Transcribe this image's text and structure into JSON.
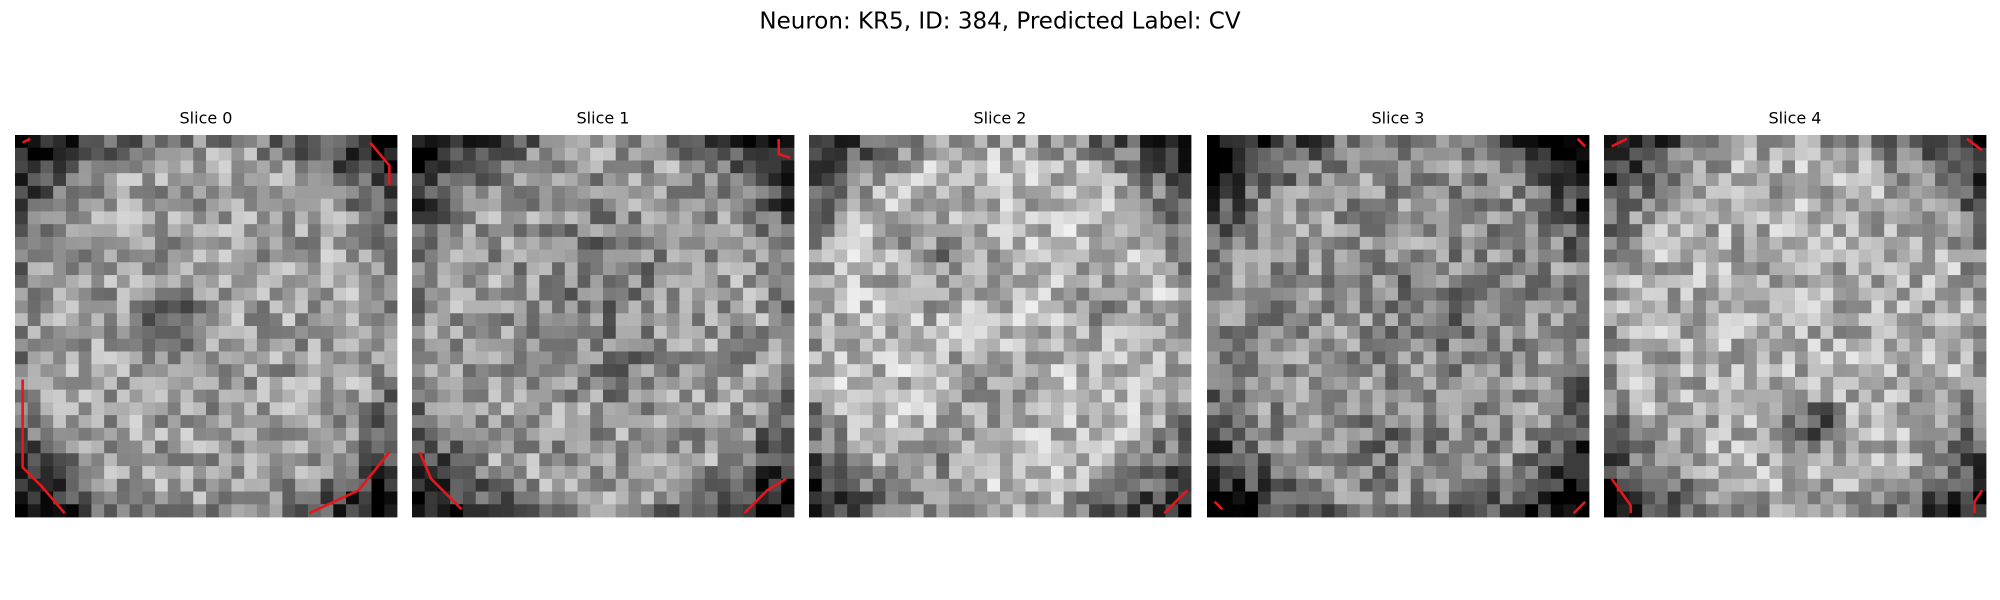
{
  "header": {
    "title": "Neuron: KR5, ID: 384, Predicted Label: CV"
  },
  "panels": [
    {
      "title": "Slice 0"
    },
    {
      "title": "Slice 1"
    },
    {
      "title": "Slice 2"
    },
    {
      "title": "Slice 3"
    },
    {
      "title": "Slice 4"
    }
  ]
}
